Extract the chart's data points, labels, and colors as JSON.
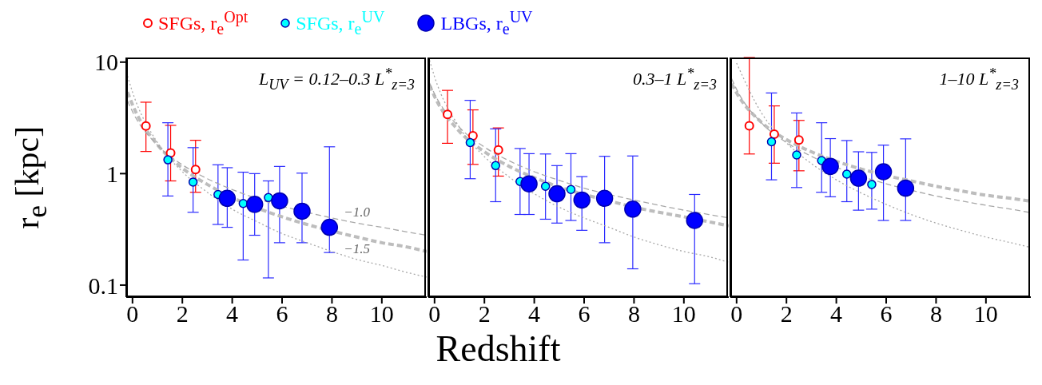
{
  "chart_data": [
    {
      "type": "scatter",
      "ylabel": "r$_{e}$ [kpc]",
      "log": "y",
      "legend": "top",
      "marker": "circle",
      "xlim": [
        -0.25,
        11.8
      ],
      "xticks": [
        0,
        2,
        4,
        6,
        8,
        10
      ],
      "ylim": [
        0.078,
        11
      ],
      "yticks": [
        0.1,
        1,
        10
      ],
      "annotations": [
        "L$_{UV}$ = 0.12–0.3 L$^{*}$$_{z=3}$"
      ],
      "series": [
        {
          "name": "SFGs, r$_{e}$$^{Opt}$",
          "color": "#ff0000",
          "x": [
            0.54,
            1.53,
            2.53
          ],
          "values": [
            2.67,
            1.53,
            1.09
          ],
          "errors": [
            [
              1.58,
              4.37
            ],
            [
              0.86,
              2.71
            ],
            [
              0.68,
              1.99
            ]
          ]
        },
        {
          "name": "SFGs, r$_{e}$$^{UV}$",
          "color": "#00ffff",
          "x": [
            1.42,
            2.43,
            3.43,
            4.44,
            5.45
          ],
          "values": [
            1.33,
            0.84,
            0.65,
            0.54,
            0.61
          ],
          "errors": [
            [
              0.63,
              2.86
            ],
            [
              0.45,
              1.71
            ],
            [
              0.35,
              1.2
            ],
            [
              0.168,
              1.03
            ],
            [
              0.116,
              0.86
            ]
          ]
        },
        {
          "name": "LBGs, r$_{e}$$^{UV}$",
          "color": "#0000ff",
          "x": [
            3.8,
            4.9,
            5.9,
            6.8,
            7.9
          ],
          "values": [
            0.6,
            0.53,
            0.57,
            0.46,
            0.33
          ],
          "errors": [
            [
              0.33,
              1.13
            ],
            [
              0.28,
              1.0
            ],
            [
              0.24,
              1.16
            ],
            [
              0.24,
              1.01
            ],
            [
              0.196,
              1.74
            ]
          ]
        },
        {
          "type": "line",
          "color": "#bdbdbd",
          "marker": "none",
          "line_style": "dashed",
          "x": [
            -0.2,
            0,
            1,
            2,
            3,
            4,
            6,
            7,
            9,
            10,
            11,
            11.8
          ],
          "values": [
            5.4,
            4.15,
            1.82,
            1.12,
            0.8,
            0.61,
            0.41,
            0.35,
            0.27,
            0.24,
            0.22,
            0.2
          ]
        },
        {
          "type": "line",
          "name": "−1.0",
          "color": "#a8a8a8",
          "marker": "none",
          "line_style": "dashed",
          "x": [
            -0.2,
            0,
            1,
            2,
            3,
            4,
            6,
            7,
            8,
            9,
            10,
            11,
            11.8
          ],
          "values": [
            4.5,
            3.6,
            1.8,
            1.2,
            0.9,
            0.72,
            0.51,
            0.45,
            0.4,
            0.36,
            0.33,
            0.3,
            0.28
          ]
        },
        {
          "type": "line",
          "name": "−1.5",
          "color": "#a8a8a8",
          "marker": "none",
          "line_style": "dotted",
          "x": [
            -0.2,
            0,
            1,
            2,
            3,
            4,
            5,
            6,
            7,
            8,
            9,
            10,
            11,
            11.8
          ],
          "values": [
            7.5,
            5.4,
            1.9,
            1.04,
            0.68,
            0.48,
            0.37,
            0.29,
            0.24,
            0.2,
            0.17,
            0.15,
            0.13,
            0.118
          ]
        }
      ]
    },
    {
      "type": "scatter",
      "xlabel": "Redshift",
      "log": "y",
      "marker": "circle",
      "tick_labels": "x",
      "xlim": [
        -0.25,
        11.8
      ],
      "xticks": [
        0,
        2,
        4,
        6,
        8,
        10
      ],
      "ylim": [
        0.078,
        11
      ],
      "yticks": [
        0.1,
        1,
        10
      ],
      "annotations": [
        "0.3–1 L$^{*}$$_{z=3}$"
      ],
      "series": [
        {
          "color": "#ff0000",
          "x": [
            0.52,
            1.54,
            2.56
          ],
          "values": [
            3.39,
            2.18,
            1.63
          ],
          "errors": [
            [
              1.87,
              5.58
            ],
            [
              1.21,
              3.73
            ],
            [
              0.95,
              2.57
            ]
          ]
        },
        {
          "color": "#00ffff",
          "x": [
            1.43,
            2.45,
            3.43,
            4.45,
            5.47
          ],
          "values": [
            1.9,
            1.18,
            0.85,
            0.77,
            0.72
          ],
          "errors": [
            [
              0.9,
              4.54
            ],
            [
              0.56,
              2.52
            ],
            [
              0.43,
              1.68
            ],
            [
              0.39,
              1.5
            ],
            [
              0.38,
              1.51
            ]
          ]
        },
        {
          "color": "#0000ff",
          "x": [
            3.79,
            4.91,
            5.91,
            6.82,
            7.95,
            10.43
          ],
          "values": [
            0.81,
            0.66,
            0.58,
            0.6,
            0.48,
            0.38
          ],
          "errors": [
            [
              0.43,
              1.51
            ],
            [
              0.36,
              1.18
            ],
            [
              0.31,
              0.94
            ],
            [
              0.24,
              1.43
            ],
            [
              0.14,
              1.44
            ],
            [
              0.103,
              0.65
            ]
          ]
        },
        {
          "type": "line",
          "color": "#bdbdbd",
          "marker": "none",
          "line_style": "dashed",
          "x": [
            -0.2,
            0,
            1,
            2,
            3,
            4,
            5,
            6,
            7,
            8,
            9,
            10,
            11,
            11.8
          ],
          "values": [
            6.2,
            4.92,
            2.39,
            1.57,
            1.16,
            0.92,
            0.76,
            0.65,
            0.57,
            0.5,
            0.45,
            0.41,
            0.37,
            0.34
          ]
        },
        {
          "type": "line",
          "color": "#a8a8a8",
          "marker": "none",
          "line_style": "dashed",
          "x": [
            -0.2,
            0,
            1,
            2,
            3,
            4,
            5,
            6,
            7,
            8,
            9,
            10,
            11,
            11.8
          ],
          "values": [
            6.5,
            5.2,
            2.6,
            1.73,
            1.3,
            1.04,
            0.87,
            0.74,
            0.65,
            0.58,
            0.52,
            0.47,
            0.43,
            0.4
          ]
        },
        {
          "type": "line",
          "color": "#a8a8a8",
          "marker": "none",
          "line_style": "dotted",
          "x": [
            -0.2,
            0,
            1,
            2,
            3,
            4,
            5,
            6,
            7,
            8,
            9,
            10,
            11,
            11.8
          ],
          "values": [
            10.4,
            7.4,
            2.6,
            1.42,
            0.93,
            0.66,
            0.5,
            0.4,
            0.33,
            0.27,
            0.23,
            0.2,
            0.18,
            0.16
          ]
        }
      ]
    },
    {
      "type": "scatter",
      "log": "y",
      "marker": "circle",
      "tick_labels": "x",
      "xlim": [
        -0.25,
        11.8
      ],
      "xticks": [
        0,
        2,
        4,
        6,
        8,
        10
      ],
      "ylim": [
        0.078,
        11
      ],
      "yticks": [
        0.1,
        1,
        10
      ],
      "annotations": [
        "1–10 L$^{*}$$_{z=3}$"
      ],
      "series": [
        {
          "color": "#ff0000",
          "x": [
            0.51,
            1.51,
            2.5
          ],
          "values": [
            2.68,
            2.26,
            2.0
          ],
          "errors": [
            [
              1.5,
              11
            ],
            [
              1.24,
              4.05
            ],
            [
              1.06,
              3.0
            ]
          ]
        },
        {
          "color": "#00ffff",
          "x": [
            1.4,
            2.41,
            3.41,
            4.42,
            5.42
          ],
          "values": [
            1.93,
            1.47,
            1.31,
            0.99,
            0.8
          ],
          "errors": [
            [
              0.88,
              5.29
            ],
            [
              0.75,
              3.5
            ],
            [
              0.68,
              2.86
            ],
            [
              0.56,
              1.98
            ],
            [
              0.48,
              1.55
            ]
          ]
        },
        {
          "color": "#0000ff",
          "x": [
            3.76,
            4.89,
            5.89,
            6.78
          ],
          "values": [
            1.16,
            0.91,
            1.04,
            0.74
          ],
          "errors": [
            [
              0.62,
              2.06
            ],
            [
              0.47,
              1.57
            ],
            [
              0.38,
              1.8
            ],
            [
              0.38,
              2.05
            ]
          ]
        },
        {
          "type": "line",
          "color": "#bdbdbd",
          "marker": "none",
          "line_style": "dashed",
          "x": [
            -0.2,
            0,
            1,
            2,
            3,
            4,
            5,
            6,
            7,
            8,
            9,
            10,
            11,
            11.7
          ],
          "values": [
            6.4,
            5.3,
            2.88,
            2.02,
            1.57,
            1.29,
            1.1,
            0.96,
            0.86,
            0.77,
            0.7,
            0.64,
            0.6,
            0.57
          ]
        },
        {
          "type": "line",
          "color": "#a8a8a8",
          "marker": "none",
          "line_style": "dashed",
          "x": [
            -0.2,
            0,
            1,
            2,
            3,
            4,
            6,
            7,
            8,
            9,
            10,
            11,
            11.7
          ],
          "values": [
            7.1,
            5.7,
            2.85,
            1.9,
            1.43,
            1.14,
            0.81,
            0.71,
            0.63,
            0.57,
            0.52,
            0.48,
            0.45
          ]
        },
        {
          "type": "line",
          "color": "#a8a8a8",
          "marker": "none",
          "line_style": "dotted",
          "x": [
            0,
            1,
            2,
            3,
            4,
            5,
            6,
            7,
            8,
            9,
            10,
            11,
            11.7
          ],
          "values": [
            9.8,
            3.5,
            1.89,
            1.23,
            0.88,
            0.67,
            0.53,
            0.43,
            0.36,
            0.31,
            0.27,
            0.24,
            0.22
          ]
        }
      ]
    }
  ]
}
